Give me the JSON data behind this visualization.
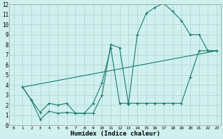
{
  "xlabel": "Humidex (Indice chaleur)",
  "bg_color": "#cff0ee",
  "line_color": "#1a7a6e",
  "grid_color": "#b0d8d4",
  "xlim": [
    -0.5,
    23.5
  ],
  "ylim": [
    0,
    12
  ],
  "xticks": [
    0,
    1,
    2,
    3,
    4,
    5,
    6,
    7,
    8,
    9,
    10,
    11,
    12,
    13,
    14,
    15,
    16,
    17,
    18,
    19,
    20,
    21,
    22,
    23
  ],
  "yticks": [
    0,
    1,
    2,
    3,
    4,
    5,
    6,
    7,
    8,
    9,
    10,
    11,
    12
  ],
  "series1_x": [
    1,
    2,
    3,
    4,
    5,
    6,
    7,
    8,
    9,
    10,
    11,
    12,
    13,
    14,
    15,
    16,
    17,
    18,
    19,
    20,
    21,
    22,
    23
  ],
  "series1_y": [
    3.8,
    2.5,
    0.6,
    1.4,
    1.2,
    1.3,
    1.2,
    1.2,
    1.2,
    3.0,
    8.0,
    7.7,
    2.1,
    9.0,
    11.1,
    11.7,
    12.1,
    11.3,
    10.4,
    9.0,
    9.0,
    7.4,
    7.4
  ],
  "series2_x": [
    1,
    2,
    3,
    4,
    5,
    6,
    7,
    8,
    9,
    10,
    11,
    12,
    13,
    14,
    15,
    16,
    17,
    18,
    19,
    20,
    21,
    22,
    23
  ],
  "series2_y": [
    3.8,
    2.5,
    1.3,
    2.2,
    2.0,
    2.2,
    1.2,
    1.2,
    2.2,
    4.2,
    7.7,
    2.2,
    2.2,
    2.2,
    2.2,
    2.2,
    2.2,
    2.2,
    2.2,
    4.8,
    7.4,
    7.4,
    7.4
  ],
  "series3_x": [
    1,
    23
  ],
  "series3_y": [
    3.8,
    7.4
  ]
}
